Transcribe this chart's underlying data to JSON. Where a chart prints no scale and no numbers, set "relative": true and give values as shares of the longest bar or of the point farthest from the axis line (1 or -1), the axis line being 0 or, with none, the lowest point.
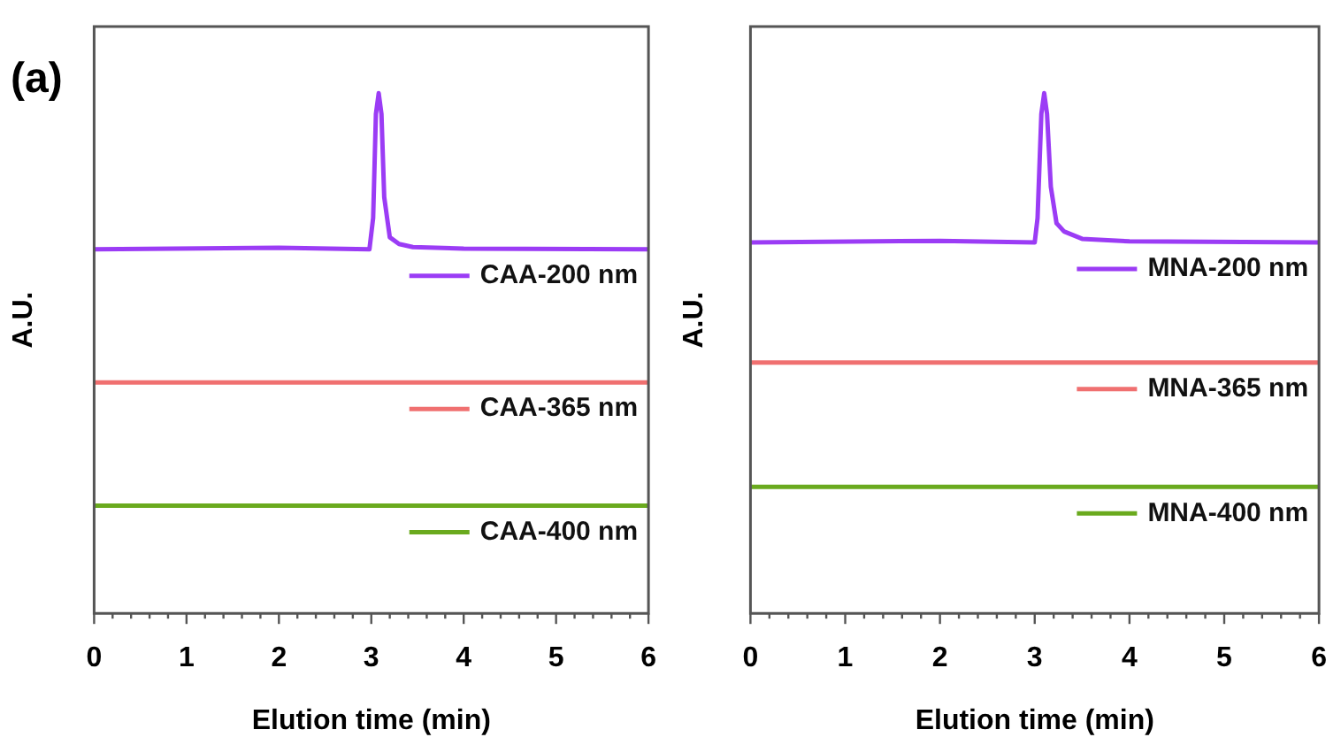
{
  "chart_data": [
    {
      "type": "line",
      "annotations": [
        "(a)"
      ],
      "xlabel": "Elution time (min)",
      "ylabel": "A.U.",
      "relative": true,
      "xlim": [
        0,
        6
      ],
      "xticks": [
        0,
        {
          "value": 0.2,
          "label": null
        },
        {
          "value": 0.4,
          "label": null
        },
        {
          "value": 0.6,
          "label": null
        },
        {
          "value": 0.8,
          "label": null
        },
        1,
        {
          "value": 1.2,
          "label": null
        },
        {
          "value": 1.4,
          "label": null
        },
        {
          "value": 1.6,
          "label": null
        },
        {
          "value": 1.8,
          "label": null
        },
        2,
        {
          "value": 2.2,
          "label": null
        },
        {
          "value": 2.4,
          "label": null
        },
        {
          "value": 2.6,
          "label": null
        },
        {
          "value": 2.8,
          "label": null
        },
        3,
        {
          "value": 3.2,
          "label": null
        },
        {
          "value": 3.4,
          "label": null
        },
        {
          "value": 3.6,
          "label": null
        },
        {
          "value": 3.8,
          "label": null
        },
        4,
        {
          "value": 4.2,
          "label": null
        },
        {
          "value": 4.4,
          "label": null
        },
        {
          "value": 4.6,
          "label": null
        },
        {
          "value": 4.8,
          "label": null
        },
        5,
        {
          "value": 5.2,
          "label": null
        },
        {
          "value": 5.4,
          "label": null
        },
        {
          "value": 5.6,
          "label": null
        },
        {
          "value": 5.8,
          "label": null
        },
        6
      ],
      "tick_labels": "x",
      "grid": false,
      "legend": "bottom right",
      "marker": "none",
      "line_style": "solid",
      "series": [
        {
          "name": "CAA-200 nm",
          "color": "#9b3cf5",
          "x": [
            0,
            2.0,
            2.98,
            3.02,
            3.05,
            3.08,
            3.11,
            3.14,
            3.2,
            3.3,
            3.45,
            4.0,
            6.0
          ],
          "values": [
            0.7,
            0.703,
            0.7,
            0.76,
            0.96,
            1.0,
            0.96,
            0.8,
            0.723,
            0.71,
            0.704,
            0.701,
            0.7
          ]
        },
        {
          "name": "CAA-365 nm",
          "color": "#f07070",
          "x": [
            0,
            6
          ],
          "values": [
            0.444,
            0.444
          ]
        },
        {
          "name": "CAA-400 nm",
          "color": "#6aaa1e",
          "x": [
            0,
            6
          ],
          "values": [
            0.207,
            0.207
          ]
        }
      ]
    },
    {
      "type": "line",
      "xlabel": "Elution time (min)",
      "ylabel": "A.U.",
      "relative": true,
      "xlim": [
        0,
        6
      ],
      "xticks": [
        0,
        {
          "value": 0.2,
          "label": null
        },
        {
          "value": 0.4,
          "label": null
        },
        {
          "value": 0.6,
          "label": null
        },
        {
          "value": 0.8,
          "label": null
        },
        1,
        {
          "value": 1.2,
          "label": null
        },
        {
          "value": 1.4,
          "label": null
        },
        {
          "value": 1.6,
          "label": null
        },
        {
          "value": 1.8,
          "label": null
        },
        2,
        {
          "value": 2.2,
          "label": null
        },
        {
          "value": 2.4,
          "label": null
        },
        {
          "value": 2.6,
          "label": null
        },
        {
          "value": 2.8,
          "label": null
        },
        3,
        {
          "value": 3.2,
          "label": null
        },
        {
          "value": 3.4,
          "label": null
        },
        {
          "value": 3.6,
          "label": null
        },
        {
          "value": 3.8,
          "label": null
        },
        4,
        {
          "value": 4.2,
          "label": null
        },
        {
          "value": 4.4,
          "label": null
        },
        {
          "value": 4.6,
          "label": null
        },
        {
          "value": 4.8,
          "label": null
        },
        5,
        {
          "value": 5.2,
          "label": null
        },
        {
          "value": 5.4,
          "label": null
        },
        {
          "value": 5.6,
          "label": null
        },
        {
          "value": 5.8,
          "label": null
        },
        6
      ],
      "tick_labels": "x",
      "grid": false,
      "legend": "bottom right",
      "marker": "none",
      "line_style": "solid",
      "series": [
        {
          "name": "MNA-200 nm",
          "color": "#9b3cf5",
          "x": [
            0,
            2.0,
            3.0,
            3.03,
            3.07,
            3.1,
            3.13,
            3.17,
            3.23,
            3.31,
            3.5,
            4.0,
            6.0
          ],
          "values": [
            0.713,
            0.716,
            0.713,
            0.76,
            0.96,
            1.0,
            0.96,
            0.82,
            0.75,
            0.734,
            0.72,
            0.715,
            0.713
          ]
        },
        {
          "name": "MNA-365 nm",
          "color": "#f07070",
          "x": [
            0,
            6
          ],
          "values": [
            0.482,
            0.482
          ]
        },
        {
          "name": "MNA-400 nm",
          "color": "#6aaa1e",
          "x": [
            0,
            6
          ],
          "values": [
            0.243,
            0.243
          ]
        }
      ]
    }
  ]
}
